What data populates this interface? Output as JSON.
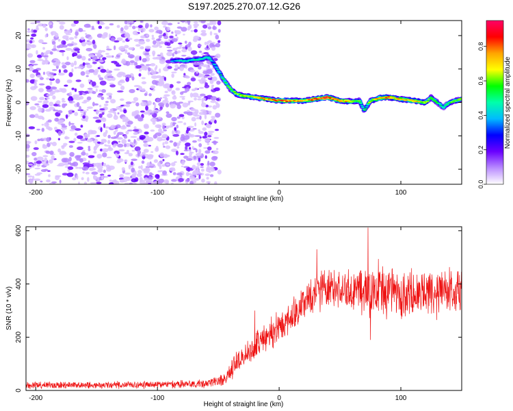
{
  "title": "S197.2025.270.07.12.G26",
  "chart_data": [
    {
      "type": "heatmap",
      "title": "S197.2025.270.07.12.G26",
      "xlabel": "Height of straight line (km)",
      "ylabel": "Frequency (Hz)",
      "xlim": [
        -208,
        150
      ],
      "ylim": [
        -24.5,
        24.5
      ],
      "xticks": [
        -200,
        -100,
        0,
        100
      ],
      "yticks": [
        -20,
        -10,
        0,
        10,
        20
      ],
      "grid": false,
      "colorbar": {
        "label": "Normalized spectral amplitude",
        "range": [
          0.0,
          0.95
        ],
        "ticks": [
          0.0,
          0.2,
          0.4,
          0.6,
          0.8
        ],
        "colors": [
          "#ffffff",
          "#b98cff",
          "#6a00ff",
          "#0000ff",
          "#00bbff",
          "#00ffaa",
          "#00ff00",
          "#ffff00",
          "#ffa500",
          "#ff0000",
          "#ff0066"
        ]
      },
      "noise_region": {
        "x_range": [
          -208,
          -55
        ],
        "amplitude_range": [
          0.0,
          0.2
        ]
      },
      "signal_track": {
        "x": [
          -88,
          -75,
          -65,
          -58,
          -55,
          -50,
          -45,
          -40,
          -35,
          -30,
          -20,
          -10,
          0,
          10,
          20,
          30,
          40,
          50,
          60,
          66,
          70,
          75,
          80,
          85,
          90,
          100,
          110,
          120,
          125,
          130,
          135,
          140,
          150
        ],
        "frequency": [
          12.5,
          12.5,
          13.0,
          13.5,
          12.5,
          9.5,
          6.5,
          4.0,
          2.5,
          2.0,
          1.5,
          1.0,
          0.5,
          0.5,
          0.5,
          1.0,
          1.5,
          0.5,
          0.3,
          0.5,
          -2.5,
          0.5,
          1.0,
          1.5,
          1.5,
          1.0,
          0.5,
          0.0,
          1.5,
          0.0,
          -1.5,
          0.0,
          1.0
        ],
        "amplitude": [
          0.35,
          0.45,
          0.45,
          0.5,
          0.4,
          0.45,
          0.5,
          0.55,
          0.6,
          0.65,
          0.7,
          0.75,
          0.8,
          0.75,
          0.7,
          0.8,
          0.85,
          0.75,
          0.7,
          0.55,
          0.45,
          0.6,
          0.7,
          0.85,
          0.75,
          0.7,
          0.75,
          0.6,
          0.55,
          0.5,
          0.45,
          0.55,
          0.6
        ]
      }
    },
    {
      "type": "line",
      "xlabel": "Height of straight line (km)",
      "ylabel": "SNR (10 * v/v)",
      "xlim": [
        -208,
        150
      ],
      "ylim": [
        0,
        615
      ],
      "xticks": [
        -200,
        -100,
        0,
        100
      ],
      "yticks": [
        0,
        200,
        400,
        600
      ],
      "grid": false,
      "series": [
        {
          "name": "SNR",
          "color": "#ee1111",
          "trend_x": [
            -208,
            -150,
            -100,
            -60,
            -45,
            -35,
            -25,
            -10,
            0,
            10,
            20,
            30,
            40,
            60,
            80,
            100,
            120,
            150
          ],
          "trend_mean": [
            20,
            20,
            22,
            25,
            40,
            100,
            150,
            200,
            240,
            280,
            330,
            370,
            390,
            380,
            375,
            370,
            370,
            370
          ],
          "trend_spread": [
            15,
            15,
            15,
            18,
            30,
            50,
            60,
            70,
            70,
            70,
            75,
            80,
            90,
            100,
            110,
            100,
            95,
            110
          ],
          "peaks": [
            {
              "x": 73,
              "y": 612
            },
            {
              "x": 75,
              "y": 190
            },
            {
              "x": -20,
              "y": 300
            },
            {
              "x": 31,
              "y": 530
            }
          ]
        }
      ]
    }
  ]
}
